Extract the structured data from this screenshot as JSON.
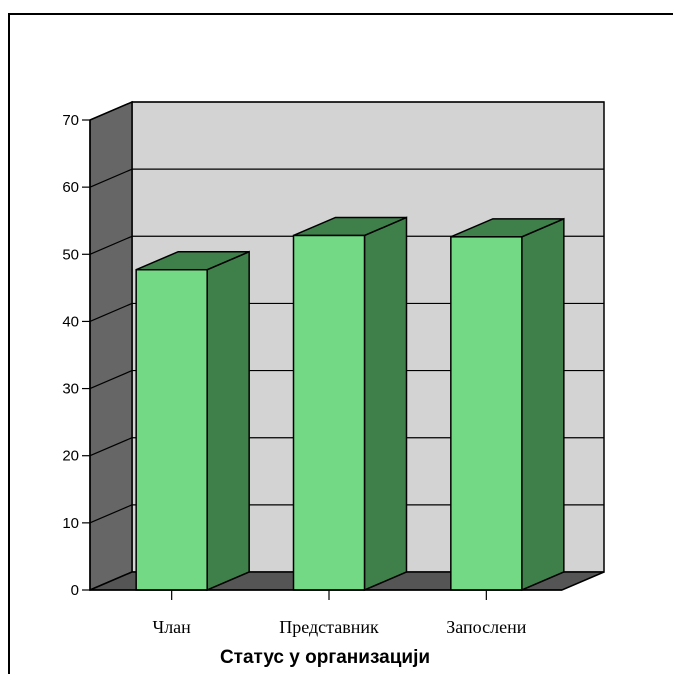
{
  "chart_data": {
    "type": "bar",
    "categories": [
      "Члан",
      "Представник",
      "Запослени"
    ],
    "values": [
      47.7,
      52.8,
      52.6
    ],
    "xlabel": "Статус у организацији",
    "ylabel": "",
    "ylim": [
      0,
      70
    ],
    "yticks": [
      "0",
      "10",
      "20",
      "30",
      "40",
      "50",
      "60",
      "70"
    ],
    "grid": true,
    "style": "3d",
    "colors": {
      "bar_front": "#74d984",
      "bar_side": "#3f7f4a",
      "back_wall": "#d3d3d3",
      "side_wall": "#666666",
      "floor": "#555555"
    }
  }
}
